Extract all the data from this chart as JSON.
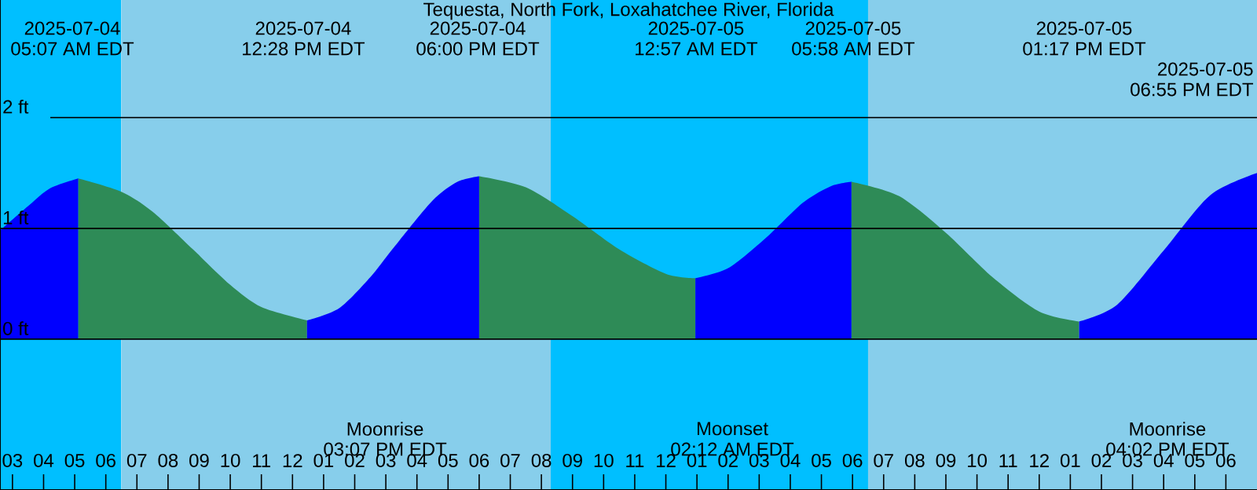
{
  "chart_data": {
    "type": "area",
    "title": "Tequesta, North Fork, Loxahatchee River, Florida",
    "xlim": [
      "2025-07-04T02:36",
      "2025-07-05T19:00"
    ],
    "ylim": [
      -1.36,
      3.06
    ],
    "yticks": [
      {
        "value": 0,
        "label": "0 ft"
      },
      {
        "value": 1,
        "label": "1 ft"
      },
      {
        "value": 2,
        "label": "2 ft"
      }
    ],
    "xticks": [
      {
        "value": "2025-07-04T03:00",
        "label": "03"
      },
      {
        "value": "2025-07-04T04:00",
        "label": "04"
      },
      {
        "value": "2025-07-04T05:00",
        "label": "05"
      },
      {
        "value": "2025-07-04T06:00",
        "label": "06"
      },
      {
        "value": "2025-07-04T07:00",
        "label": "07"
      },
      {
        "value": "2025-07-04T08:00",
        "label": "08"
      },
      {
        "value": "2025-07-04T09:00",
        "label": "09"
      },
      {
        "value": "2025-07-04T10:00",
        "label": "10"
      },
      {
        "value": "2025-07-04T11:00",
        "label": "11"
      },
      {
        "value": "2025-07-04T12:00",
        "label": "12"
      },
      {
        "value": "2025-07-04T13:00",
        "label": "01"
      },
      {
        "value": "2025-07-04T14:00",
        "label": "02"
      },
      {
        "value": "2025-07-04T15:00",
        "label": "03"
      },
      {
        "value": "2025-07-04T16:00",
        "label": "04"
      },
      {
        "value": "2025-07-04T17:00",
        "label": "05"
      },
      {
        "value": "2025-07-04T18:00",
        "label": "06"
      },
      {
        "value": "2025-07-04T19:00",
        "label": "07"
      },
      {
        "value": "2025-07-04T20:00",
        "label": "08"
      },
      {
        "value": "2025-07-04T21:00",
        "label": "09"
      },
      {
        "value": "2025-07-04T22:00",
        "label": "10"
      },
      {
        "value": "2025-07-04T23:00",
        "label": "11"
      },
      {
        "value": "2025-07-05T00:00",
        "label": "12"
      },
      {
        "value": "2025-07-05T01:00",
        "label": "01"
      },
      {
        "value": "2025-07-05T02:00",
        "label": "02"
      },
      {
        "value": "2025-07-05T03:00",
        "label": "03"
      },
      {
        "value": "2025-07-05T04:00",
        "label": "04"
      },
      {
        "value": "2025-07-05T05:00",
        "label": "05"
      },
      {
        "value": "2025-07-05T06:00",
        "label": "06"
      },
      {
        "value": "2025-07-05T07:00",
        "label": "07"
      },
      {
        "value": "2025-07-05T08:00",
        "label": "08"
      },
      {
        "value": "2025-07-05T09:00",
        "label": "09"
      },
      {
        "value": "2025-07-05T10:00",
        "label": "10"
      },
      {
        "value": "2025-07-05T11:00",
        "label": "11"
      },
      {
        "value": "2025-07-05T12:00",
        "label": "12"
      },
      {
        "value": "2025-07-05T13:00",
        "label": "01"
      },
      {
        "value": "2025-07-05T14:00",
        "label": "02"
      },
      {
        "value": "2025-07-05T15:00",
        "label": "03"
      },
      {
        "value": "2025-07-05T16:00",
        "label": "04"
      },
      {
        "value": "2025-07-05T17:00",
        "label": "05"
      },
      {
        "value": "2025-07-05T18:00",
        "label": "06"
      }
    ],
    "grid": "y",
    "bands": [
      {
        "axis": "x",
        "from": "2025-07-04T02:36",
        "to": "2025-07-04T06:30",
        "color": "#00bfff"
      },
      {
        "axis": "x",
        "from": "2025-07-04T06:30",
        "to": "2025-07-04T20:18",
        "color": "#87ceeb"
      },
      {
        "axis": "x",
        "from": "2025-07-04T20:18",
        "to": "2025-07-05T06:30",
        "color": "#00bfff"
      },
      {
        "axis": "x",
        "from": "2025-07-05T06:30",
        "to": "2025-07-05T19:00",
        "color": "#87ceeb"
      }
    ],
    "series": [
      {
        "color": "#0000ff",
        "x": [
          "2025-07-04T02:36",
          "2025-07-04T03:30",
          "2025-07-04T04:12",
          "2025-07-04T05:07"
        ],
        "values": [
          0.98,
          1.2,
          1.36,
          1.45
        ]
      },
      {
        "color": "#2e8b57",
        "x": [
          "2025-07-04T05:07",
          "2025-07-04T06:30",
          "2025-07-04T07:30",
          "2025-07-04T08:48",
          "2025-07-04T10:00",
          "2025-07-04T11:00",
          "2025-07-04T12:28"
        ],
        "values": [
          1.45,
          1.33,
          1.15,
          0.81,
          0.49,
          0.29,
          0.17
        ]
      },
      {
        "color": "#0000ff",
        "x": [
          "2025-07-04T12:28",
          "2025-07-04T13:30",
          "2025-07-04T14:30",
          "2025-07-04T15:14",
          "2025-07-04T16:30",
          "2025-07-04T17:18",
          "2025-07-04T18:00"
        ],
        "values": [
          0.17,
          0.28,
          0.56,
          0.82,
          1.25,
          1.42,
          1.47
        ]
      },
      {
        "color": "#2e8b57",
        "x": [
          "2025-07-04T18:00",
          "2025-07-04T19:30",
          "2025-07-04T21:00",
          "2025-07-04T22:30",
          "2025-07-05T00:00",
          "2025-07-05T00:57"
        ],
        "values": [
          1.47,
          1.37,
          1.11,
          0.81,
          0.59,
          0.55
        ]
      },
      {
        "color": "#0000ff",
        "x": [
          "2025-07-05T00:57",
          "2025-07-05T02:00",
          "2025-07-05T03:12",
          "2025-07-05T04:24",
          "2025-07-05T05:18",
          "2025-07-05T05:58"
        ],
        "values": [
          0.55,
          0.64,
          0.91,
          1.23,
          1.38,
          1.42
        ]
      },
      {
        "color": "#2e8b57",
        "x": [
          "2025-07-05T05:58",
          "2025-07-05T07:30",
          "2025-07-05T09:00",
          "2025-07-05T10:30",
          "2025-07-05T12:00",
          "2025-07-05T13:17"
        ],
        "values": [
          1.42,
          1.29,
          0.96,
          0.56,
          0.25,
          0.16
        ]
      },
      {
        "color": "#0000ff",
        "x": [
          "2025-07-05T13:17",
          "2025-07-05T14:30",
          "2025-07-05T16:00",
          "2025-07-05T17:30",
          "2025-07-05T19:00"
        ],
        "values": [
          0.16,
          0.31,
          0.8,
          1.3,
          1.5
        ]
      }
    ],
    "annotations": [
      "2025-07-04",
      "05:07 AM EDT",
      "2025-07-04",
      "12:28 PM EDT",
      "2025-07-04",
      "06:00 PM EDT",
      "2025-07-05",
      "12:57 AM EDT",
      "2025-07-05",
      "05:58 AM EDT",
      "2025-07-05",
      "01:17 PM EDT",
      "2025-07-05",
      "06:55 PM EDT",
      "Moonrise",
      "03:07 PM EDT",
      "Moonset",
      "02:12 AM EDT",
      "Moonrise",
      "04:02 PM EDT"
    ]
  }
}
